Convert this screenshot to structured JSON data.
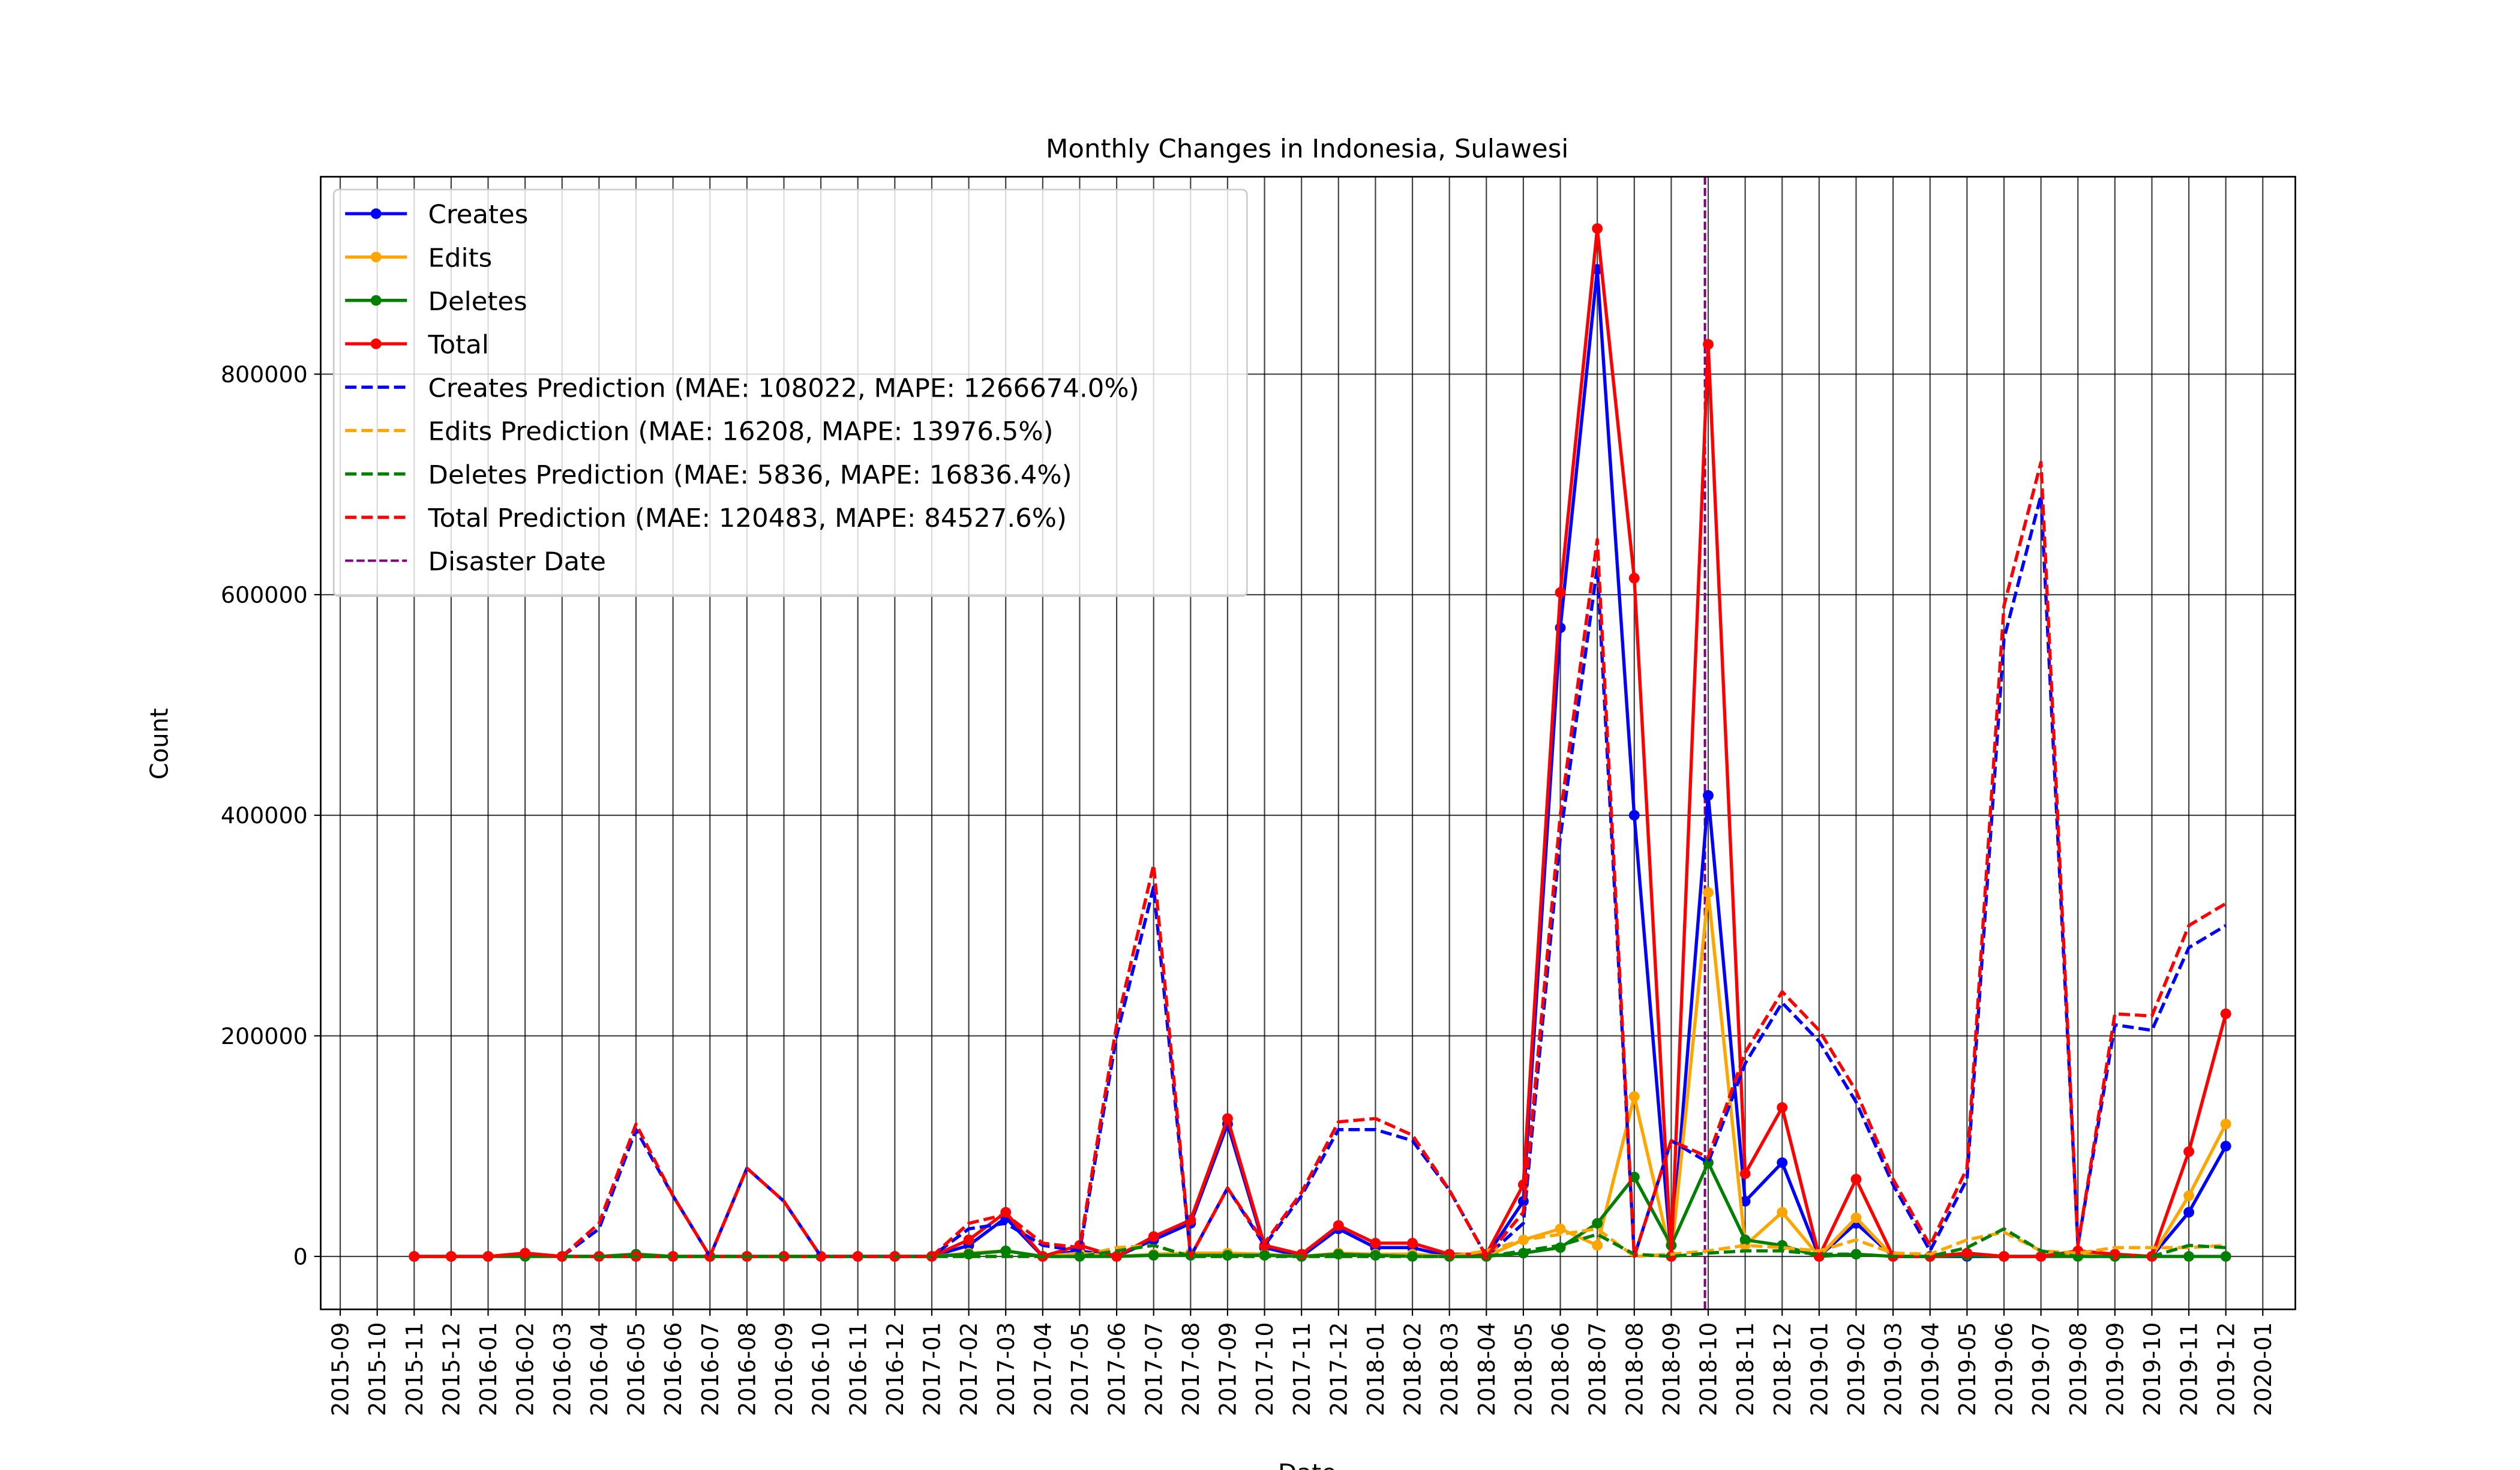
{
  "chart_data": {
    "type": "line",
    "title": "Monthly Changes in Indonesia, Sulawesi",
    "xlabel": "Date",
    "ylabel": "Count",
    "grid": true,
    "legend": "upper left",
    "ylim": [
      -48000,
      979000
    ],
    "yticks": [
      0,
      200000,
      400000,
      600000,
      800000
    ],
    "xticks": [
      "2015-09",
      "2015-10",
      "2015-11",
      "2015-12",
      "2016-01",
      "2016-02",
      "2016-03",
      "2016-04",
      "2016-05",
      "2016-06",
      "2016-07",
      "2016-08",
      "2016-09",
      "2016-10",
      "2016-11",
      "2016-12",
      "2017-01",
      "2017-02",
      "2017-03",
      "2017-04",
      "2017-05",
      "2017-06",
      "2017-07",
      "2017-08",
      "2017-09",
      "2017-10",
      "2017-11",
      "2017-12",
      "2018-01",
      "2018-02",
      "2018-03",
      "2018-04",
      "2018-05",
      "2018-06",
      "2018-07",
      "2018-08",
      "2018-09",
      "2018-10",
      "2018-11",
      "2018-12",
      "2019-01",
      "2019-02",
      "2019-03",
      "2019-04",
      "2019-05",
      "2019-06",
      "2019-07",
      "2019-08",
      "2019-09",
      "2019-10",
      "2019-11",
      "2019-12",
      "2020-01"
    ],
    "x": [
      "2015-11",
      "2015-12",
      "2016-01",
      "2016-02",
      "2016-03",
      "2016-04",
      "2016-05",
      "2016-06",
      "2016-07",
      "2016-08",
      "2016-09",
      "2016-10",
      "2016-11",
      "2016-12",
      "2017-01",
      "2017-02",
      "2017-03",
      "2017-04",
      "2017-05",
      "2017-06",
      "2017-07",
      "2017-08",
      "2017-09",
      "2017-10",
      "2017-11",
      "2017-12",
      "2018-01",
      "2018-02",
      "2018-03",
      "2018-04",
      "2018-05",
      "2018-06",
      "2018-07",
      "2018-08",
      "2018-09",
      "2018-10",
      "2018-11",
      "2018-12",
      "2019-01",
      "2019-02",
      "2019-03",
      "2019-04",
      "2019-05",
      "2019-06",
      "2019-07",
      "2019-08",
      "2019-09",
      "2019-10",
      "2019-11",
      "2019-12"
    ],
    "series": [
      {
        "name": "Creates",
        "color": "blue",
        "style": "solid",
        "marker": true,
        "values": [
          0,
          0,
          0,
          2000,
          0,
          0,
          0,
          0,
          0,
          0,
          0,
          0,
          0,
          0,
          0,
          10000,
          35000,
          0,
          5000,
          0,
          15000,
          30000,
          120000,
          8000,
          0,
          25000,
          8000,
          8000,
          0,
          0,
          50000,
          570000,
          895000,
          400000,
          0,
          418000,
          50000,
          85000,
          0,
          30000,
          0,
          0,
          0,
          0,
          0,
          3000,
          0,
          0,
          40000,
          100000
        ]
      },
      {
        "name": "Edits",
        "color": "orange",
        "style": "solid",
        "marker": true,
        "values": [
          0,
          0,
          0,
          1000,
          0,
          0,
          0,
          0,
          0,
          0,
          0,
          0,
          0,
          0,
          0,
          3000,
          5000,
          0,
          3000,
          0,
          2000,
          3000,
          3000,
          2000,
          0,
          3000,
          2000,
          2000,
          0,
          0,
          15000,
          25000,
          10000,
          145000,
          0,
          330000,
          10000,
          40000,
          0,
          35000,
          0,
          0,
          2000,
          0,
          0,
          2000,
          2000,
          0,
          55000,
          120000
        ]
      },
      {
        "name": "Deletes",
        "color": "green",
        "style": "solid",
        "marker": true,
        "values": [
          0,
          0,
          0,
          0,
          0,
          0,
          2000,
          0,
          0,
          0,
          0,
          0,
          0,
          0,
          0,
          2000,
          5000,
          0,
          0,
          0,
          1000,
          1000,
          1000,
          1000,
          0,
          2000,
          1000,
          0,
          0,
          0,
          3000,
          8000,
          30000,
          72000,
          10000,
          85000,
          15000,
          10000,
          0,
          2000,
          0,
          0,
          1000,
          0,
          0,
          0,
          0,
          0,
          0,
          0
        ]
      },
      {
        "name": "Total",
        "color": "red",
        "style": "solid",
        "marker": true,
        "values": [
          0,
          0,
          0,
          3000,
          0,
          0,
          0,
          0,
          0,
          0,
          0,
          0,
          0,
          0,
          0,
          15000,
          40000,
          0,
          10000,
          0,
          18000,
          33000,
          125000,
          10000,
          2000,
          28000,
          12000,
          12000,
          2000,
          2000,
          65000,
          602000,
          932000,
          615000,
          0,
          827000,
          75000,
          135000,
          0,
          70000,
          0,
          0,
          3000,
          0,
          0,
          5000,
          2000,
          0,
          95000,
          220000
        ]
      },
      {
        "name": "Creates Prediction (MAE: 108022, MAPE: 1266674.0%)",
        "color": "blue",
        "style": "dashed",
        "marker": false,
        "values": [
          null,
          null,
          null,
          null,
          0,
          25000,
          115000,
          55000,
          0,
          80000,
          50000,
          0,
          0,
          0,
          0,
          25000,
          30000,
          10000,
          5000,
          200000,
          335000,
          0,
          62000,
          10000,
          55000,
          115000,
          115000,
          105000,
          60000,
          0,
          30000,
          380000,
          625000,
          0,
          105000,
          85000,
          175000,
          230000,
          195000,
          140000,
          65000,
          5000,
          70000,
          560000,
          690000,
          10000,
          210000,
          205000,
          280000,
          300000
        ]
      },
      {
        "name": "Edits Prediction (MAE: 16208, MAPE: 13976.5%)",
        "color": "orange",
        "style": "dashed",
        "marker": false,
        "values": [
          null,
          null,
          null,
          null,
          0,
          0,
          0,
          0,
          0,
          0,
          0,
          0,
          0,
          0,
          0,
          0,
          0,
          0,
          0,
          8000,
          10000,
          0,
          0,
          0,
          0,
          0,
          0,
          0,
          0,
          5000,
          15000,
          20000,
          25000,
          0,
          2000,
          5000,
          10000,
          8000,
          5000,
          15000,
          3000,
          2000,
          15000,
          22000,
          5000,
          3000,
          8000,
          8000,
          8000,
          10000
        ]
      },
      {
        "name": "Deletes Prediction (MAE: 5836, MAPE: 16836.4%)",
        "color": "green",
        "style": "dashed",
        "marker": false,
        "values": [
          null,
          null,
          null,
          null,
          0,
          0,
          0,
          0,
          0,
          0,
          0,
          0,
          0,
          0,
          0,
          0,
          0,
          0,
          0,
          5000,
          10000,
          0,
          0,
          0,
          0,
          0,
          0,
          0,
          0,
          0,
          5000,
          10000,
          20000,
          2000,
          0,
          3000,
          5000,
          5000,
          2000,
          2000,
          0,
          0,
          8000,
          25000,
          5000,
          0,
          0,
          0,
          10000,
          8000
        ]
      },
      {
        "name": "Total Prediction (MAE: 120483, MAPE: 84527.6%)",
        "color": "red",
        "style": "dashed",
        "marker": false,
        "values": [
          null,
          null,
          null,
          null,
          0,
          30000,
          120000,
          55000,
          0,
          80000,
          50000,
          0,
          0,
          0,
          0,
          30000,
          38000,
          12000,
          8000,
          210000,
          355000,
          0,
          62000,
          12000,
          58000,
          122000,
          125000,
          110000,
          60000,
          0,
          40000,
          400000,
          650000,
          0,
          105000,
          90000,
          185000,
          240000,
          205000,
          150000,
          70000,
          10000,
          80000,
          590000,
          720000,
          10000,
          220000,
          218000,
          300000,
          320000
        ]
      }
    ],
    "disaster": {
      "name": "Disaster Date",
      "color": "purple",
      "x": "2018-10"
    }
  }
}
